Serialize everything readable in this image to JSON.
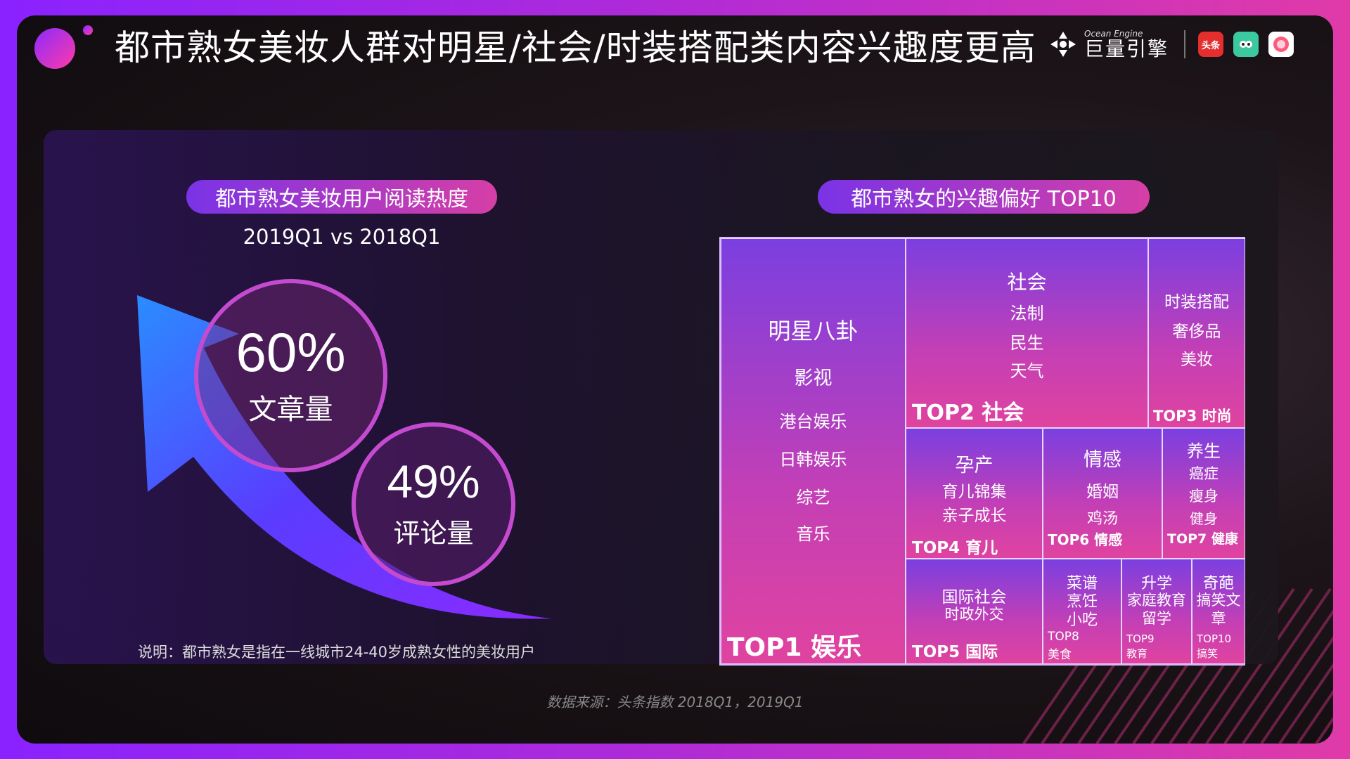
{
  "title": "都市熟女美妆人群对明星/社会/时装搭配类内容兴趣度更高",
  "logo": {
    "en": "Ocean Engine",
    "cn": "巨量引擎",
    "apps": [
      "头条",
      "抖音",
      "西瓜"
    ]
  },
  "left": {
    "pill": "都市熟女美妆用户阅读热度",
    "subtitle": "2019Q1 vs 2018Q1",
    "note": "说明：都市熟女是指在一线城市24-40岁成熟女性的美妆用户"
  },
  "right": {
    "pill": "都市熟女的兴趣偏好 TOP10"
  },
  "source": "数据来源：头条指数  2018Q1，2019Q1",
  "chart_data": [
    {
      "type": "bar",
      "title": "都市熟女美妆用户阅读热度",
      "subtitle": "2019Q1 vs 2018Q1",
      "categories": [
        "文章量",
        "评论量"
      ],
      "values": [
        60,
        49
      ],
      "labels": [
        "60%",
        "49%"
      ],
      "unit": "%"
    },
    {
      "type": "treemap",
      "title": "都市熟女的兴趣偏好 TOP10",
      "items": [
        {
          "rank": "TOP1 娱乐",
          "lines": [
            "明星八卦",
            "影视",
            "港台娱乐",
            "日韩娱乐",
            "综艺",
            "音乐"
          ]
        },
        {
          "rank": "TOP2 社会",
          "lines": [
            "社会",
            "法制",
            "民生",
            "天气"
          ]
        },
        {
          "rank": "TOP3 时尚",
          "lines": [
            "时装搭配",
            "奢侈品",
            "美妆"
          ]
        },
        {
          "rank": "TOP4 育儿",
          "lines": [
            "孕产",
            "育儿锦集",
            "亲子成长"
          ]
        },
        {
          "rank": "TOP5 国际",
          "lines": [
            "国际社会",
            "时政外交"
          ]
        },
        {
          "rank": "TOP6 情感",
          "lines": [
            "情感",
            "婚姻",
            "鸡汤"
          ]
        },
        {
          "rank": "TOP7 健康",
          "lines": [
            "养生",
            "癌症",
            "瘦身",
            "健身"
          ]
        },
        {
          "rank": "TOP8",
          "rank2": "美食",
          "lines": [
            "菜谱",
            "烹饪",
            "小吃"
          ]
        },
        {
          "rank": "TOP9",
          "rank2": "教育",
          "lines": [
            "升学",
            "家庭教育",
            "留学"
          ]
        },
        {
          "rank": "TOP10",
          "rank2": "搞笑",
          "lines": [
            "奇葩",
            "搞笑文",
            "章"
          ]
        }
      ]
    }
  ]
}
